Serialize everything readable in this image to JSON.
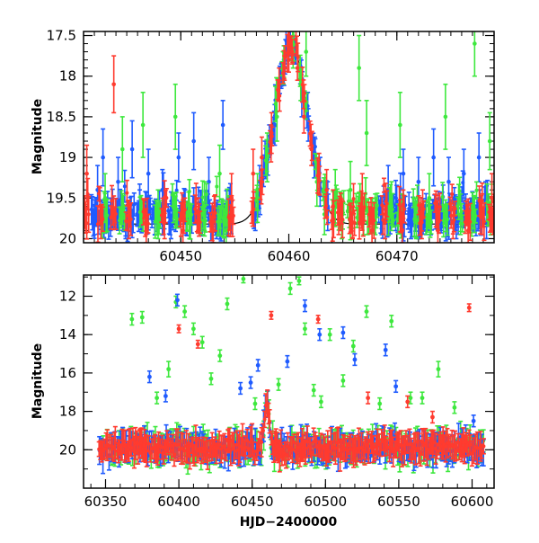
{
  "colors": {
    "red": "#ff3b2f",
    "blue": "#1f5bff",
    "green": "#3ee83e",
    "model": "#000000",
    "frame": "#000000"
  },
  "chart_data": [
    {
      "type": "scatter",
      "title": "",
      "xlabel": "",
      "ylabel": "Magnitude",
      "xlim": [
        60441,
        60479
      ],
      "ylim": [
        20.05,
        17.45
      ],
      "y_inverted": true,
      "grid": false,
      "legend": "none",
      "xticks": [
        60450,
        60460,
        60470
      ],
      "xtick_labels": [
        "60450",
        "60460",
        "60470"
      ],
      "yticks": [
        17.5,
        18,
        18.5,
        19,
        19.5,
        20
      ],
      "ytick_labels": [
        "17.5",
        "18",
        "18.5",
        "19",
        "19.5",
        "20"
      ],
      "model_curve": {
        "baseline": 19.82,
        "peak_time": 60460.2,
        "peak_mag": 17.6,
        "width_days": 2.2,
        "color": "model"
      },
      "series": [
        {
          "color": "blue",
          "points": [
            [
              60442.0,
              19.8,
              0.15
            ],
            [
              60442.3,
              19.4,
              0.3
            ],
            [
              60442.8,
              19.0,
              0.35
            ],
            [
              60443.5,
              19.7,
              0.2
            ],
            [
              60444.2,
              19.3,
              0.3
            ],
            [
              60444.9,
              19.85,
              0.15
            ],
            [
              60445.5,
              18.9,
              0.35
            ],
            [
              60446.2,
              19.6,
              0.2
            ],
            [
              60447.0,
              19.2,
              0.3
            ],
            [
              60447.6,
              19.75,
              0.2
            ],
            [
              60448.3,
              19.4,
              0.25
            ],
            [
              60449.1,
              19.85,
              0.15
            ],
            [
              60449.8,
              19.0,
              0.3
            ],
            [
              60450.4,
              19.6,
              0.2
            ],
            [
              60451.2,
              18.8,
              0.35
            ],
            [
              60451.9,
              19.7,
              0.2
            ],
            [
              60452.6,
              19.3,
              0.3
            ],
            [
              60453.3,
              19.85,
              0.15
            ],
            [
              60453.9,
              18.6,
              0.3
            ],
            [
              60454.5,
              19.6,
              0.2
            ],
            [
              60456.9,
              19.7,
              0.2
            ],
            [
              60457.3,
              19.3,
              0.2
            ],
            [
              60457.8,
              19.0,
              0.2
            ],
            [
              60458.2,
              18.8,
              0.2
            ],
            [
              60458.7,
              18.6,
              0.25
            ],
            [
              60459.3,
              18.0,
              0.15
            ],
            [
              60459.7,
              17.7,
              0.15
            ],
            [
              60460.1,
              17.6,
              0.15
            ],
            [
              60460.6,
              17.7,
              0.15
            ],
            [
              60461.2,
              18.3,
              0.2
            ],
            [
              60461.8,
              18.6,
              0.2
            ],
            [
              60462.4,
              19.0,
              0.25
            ],
            [
              60462.9,
              19.3,
              0.3
            ],
            [
              60463.6,
              19.6,
              0.3
            ],
            [
              60468.6,
              19.8,
              0.15
            ],
            [
              60469.2,
              19.4,
              0.3
            ],
            [
              60469.9,
              19.7,
              0.2
            ],
            [
              60470.6,
              19.2,
              0.3
            ],
            [
              60471.3,
              19.85,
              0.15
            ],
            [
              60472.0,
              19.3,
              0.3
            ],
            [
              60472.7,
              19.75,
              0.2
            ],
            [
              60473.4,
              19.0,
              0.35
            ],
            [
              60474.1,
              19.7,
              0.2
            ],
            [
              60474.8,
              19.3,
              0.3
            ],
            [
              60475.5,
              19.85,
              0.15
            ],
            [
              60476.2,
              19.2,
              0.3
            ],
            [
              60476.9,
              19.7,
              0.2
            ],
            [
              60477.6,
              19.0,
              0.3
            ],
            [
              60478.3,
              19.6,
              0.25
            ]
          ]
        },
        {
          "color": "green",
          "points": [
            [
              60443.0,
              19.5,
              0.3
            ],
            [
              60444.6,
              18.9,
              0.4
            ],
            [
              60446.5,
              18.6,
              0.4
            ],
            [
              60447.9,
              19.7,
              0.3
            ],
            [
              60449.5,
              18.5,
              0.4
            ],
            [
              60450.8,
              19.8,
              0.2
            ],
            [
              60452.2,
              19.6,
              0.3
            ],
            [
              60453.6,
              19.2,
              0.35
            ],
            [
              60454.2,
              19.9,
              0.2
            ],
            [
              60457.1,
              19.5,
              0.3
            ],
            [
              60458.0,
              19.0,
              0.3
            ],
            [
              60458.9,
              18.5,
              0.3
            ],
            [
              60459.5,
              17.9,
              0.2
            ],
            [
              60460.4,
              17.7,
              0.2
            ],
            [
              60461.1,
              18.1,
              0.2
            ],
            [
              60461.6,
              17.7,
              0.3
            ],
            [
              60462.6,
              19.3,
              0.3
            ],
            [
              60463.3,
              19.7,
              0.25
            ],
            [
              60464.3,
              19.5,
              0.35
            ],
            [
              60464.9,
              19.8,
              0.2
            ],
            [
              60465.7,
              19.4,
              0.35
            ],
            [
              60466.5,
              17.9,
              0.4
            ],
            [
              60467.2,
              18.7,
              0.4
            ],
            [
              60468.0,
              19.7,
              0.25
            ],
            [
              60469.5,
              19.6,
              0.3
            ],
            [
              60470.3,
              18.6,
              0.4
            ],
            [
              60471.8,
              19.8,
              0.2
            ],
            [
              60473.0,
              19.5,
              0.3
            ],
            [
              60474.5,
              18.5,
              0.4
            ],
            [
              60475.9,
              19.7,
              0.25
            ],
            [
              60477.2,
              17.6,
              0.4
            ],
            [
              60478.6,
              18.8,
              0.35
            ]
          ]
        },
        {
          "color": "red",
          "points": [
            [
              60441.3,
              19.2,
              0.35
            ],
            [
              60442.6,
              19.8,
              0.2
            ],
            [
              60443.8,
              18.1,
              0.35
            ],
            [
              60445.2,
              19.8,
              0.2
            ],
            [
              60446.8,
              19.9,
              0.15
            ],
            [
              60448.5,
              19.8,
              0.2
            ],
            [
              60450.2,
              19.9,
              0.15
            ],
            [
              60451.6,
              19.7,
              0.2
            ],
            [
              60453.0,
              19.9,
              0.15
            ],
            [
              60454.7,
              19.5,
              0.3
            ],
            [
              60456.7,
              19.2,
              0.3
            ],
            [
              60457.5,
              19.0,
              0.25
            ],
            [
              60458.4,
              18.7,
              0.25
            ],
            [
              60459.1,
              18.1,
              0.2
            ],
            [
              60459.6,
              17.9,
              0.15
            ],
            [
              60460.0,
              17.8,
              0.15
            ],
            [
              60460.3,
              17.7,
              0.15
            ],
            [
              60460.8,
              17.9,
              0.15
            ],
            [
              60461.4,
              18.5,
              0.2
            ],
            [
              60462.1,
              18.9,
              0.2
            ],
            [
              60462.8,
              19.2,
              0.25
            ],
            [
              60463.5,
              19.4,
              0.25
            ],
            [
              60464.1,
              19.6,
              0.2
            ],
            [
              60464.8,
              19.7,
              0.2
            ],
            [
              60465.9,
              19.8,
              0.2
            ],
            [
              60466.8,
              19.5,
              0.3
            ],
            [
              60467.7,
              19.9,
              0.15
            ],
            [
              60468.9,
              19.8,
              0.2
            ],
            [
              60470.5,
              19.9,
              0.15
            ],
            [
              60472.3,
              19.8,
              0.2
            ],
            [
              60473.8,
              19.9,
              0.15
            ],
            [
              60475.2,
              19.8,
              0.2
            ],
            [
              60476.6,
              19.9,
              0.15
            ],
            [
              60477.9,
              19.7,
              0.25
            ],
            [
              60478.8,
              19.5,
              0.3
            ]
          ]
        }
      ]
    },
    {
      "type": "scatter",
      "title": "",
      "xlabel": "HJD−2400000",
      "ylabel": "Magnitude",
      "xlim": [
        60335,
        60615
      ],
      "ylim": [
        22.0,
        10.9
      ],
      "y_inverted": true,
      "grid": false,
      "legend": "none",
      "xticks": [
        60350,
        60400,
        60450,
        60500,
        60550,
        60600
      ],
      "xtick_labels": [
        "60350",
        "60400",
        "60450",
        "60500",
        "60550",
        "60600"
      ],
      "yticks": [
        12,
        14,
        16,
        18,
        20
      ],
      "ytick_labels": [
        "12",
        "14",
        "16",
        "18",
        "20"
      ],
      "baseline": {
        "x_start": 60345,
        "x_end": 60608,
        "mag": 19.9,
        "spread": 0.6,
        "flare_time": 60460,
        "flare_peak": 17.6,
        "flare_width": 2.5
      },
      "series": [
        {
          "color": "green",
          "outliers": [
            [
              60368,
              13.2,
              0.3
            ],
            [
              60375,
              13.1,
              0.3
            ],
            [
              60385,
              17.3,
              0.3
            ],
            [
              60393,
              15.8,
              0.4
            ],
            [
              60398,
              12.3,
              0.3
            ],
            [
              60404,
              12.8,
              0.3
            ],
            [
              60410,
              13.7,
              0.3
            ],
            [
              60416,
              14.4,
              0.3
            ],
            [
              60422,
              16.3,
              0.3
            ],
            [
              60428,
              15.1,
              0.3
            ],
            [
              60433,
              12.4,
              0.3
            ],
            [
              60444,
              11.1,
              0.2
            ],
            [
              60452,
              17.6,
              0.3
            ],
            [
              60468,
              16.6,
              0.3
            ],
            [
              60476,
              11.6,
              0.3
            ],
            [
              60482,
              11.2,
              0.2
            ],
            [
              60486,
              13.7,
              0.3
            ],
            [
              60492,
              16.9,
              0.3
            ],
            [
              60497,
              17.5,
              0.3
            ],
            [
              60503,
              14.0,
              0.3
            ],
            [
              60512,
              16.4,
              0.3
            ],
            [
              60519,
              14.6,
              0.3
            ],
            [
              60528,
              12.8,
              0.3
            ],
            [
              60537,
              17.6,
              0.3
            ],
            [
              60545,
              13.3,
              0.3
            ],
            [
              60558,
              17.3,
              0.3
            ],
            [
              60566,
              17.3,
              0.3
            ],
            [
              60577,
              15.8,
              0.4
            ],
            [
              60588,
              17.8,
              0.3
            ]
          ]
        },
        {
          "color": "blue",
          "outliers": [
            [
              60380,
              16.2,
              0.3
            ],
            [
              60391,
              17.2,
              0.3
            ],
            [
              60399,
              12.2,
              0.3
            ],
            [
              60442,
              16.8,
              0.3
            ],
            [
              60449,
              16.5,
              0.3
            ],
            [
              60454,
              15.6,
              0.3
            ],
            [
              60474,
              15.4,
              0.3
            ],
            [
              60486,
              12.5,
              0.3
            ],
            [
              60496,
              14.0,
              0.3
            ],
            [
              60512,
              13.9,
              0.3
            ],
            [
              60520,
              15.3,
              0.3
            ],
            [
              60541,
              14.8,
              0.3
            ],
            [
              60548,
              16.7,
              0.3
            ],
            [
              60601,
              18.5,
              0.3
            ]
          ]
        },
        {
          "color": "red",
          "outliers": [
            [
              60400,
              13.7,
              0.2
            ],
            [
              60413,
              14.5,
              0.2
            ],
            [
              60463,
              13.0,
              0.2
            ],
            [
              60495,
              13.2,
              0.2
            ],
            [
              60529,
              17.3,
              0.3
            ],
            [
              60556,
              17.5,
              0.3
            ],
            [
              60573,
              18.3,
              0.3
            ],
            [
              60598,
              12.6,
              0.2
            ]
          ]
        }
      ]
    }
  ]
}
